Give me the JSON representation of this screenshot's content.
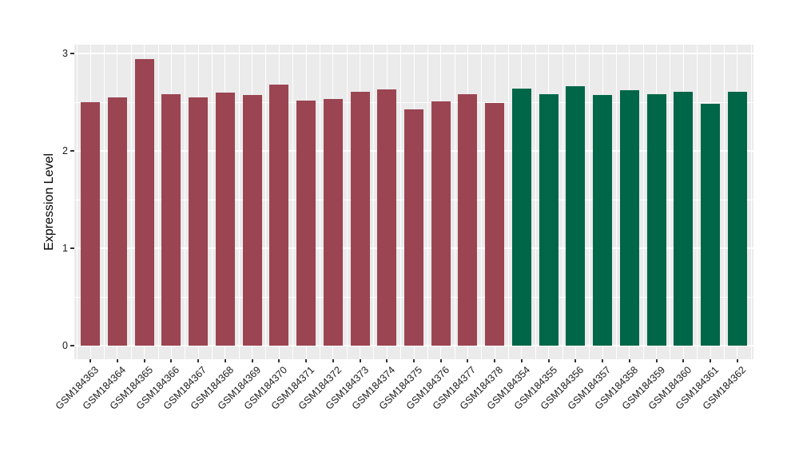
{
  "chart_data": {
    "type": "bar",
    "title": "",
    "xlabel": "",
    "ylabel": "Expression Level",
    "ylim": [
      -0.14,
      3.09
    ],
    "yticks": [
      0,
      1,
      2,
      3
    ],
    "minor_yticks": [
      0.5,
      1.5,
      2.5
    ],
    "grid": "white major+minor gridlines on gray panel, legend none",
    "panel_bg": "#EBEBEB",
    "gridline_color": "#FFFFFF",
    "group_colors": {
      "maroon": "#9B4552",
      "green": "#006648"
    },
    "bars": [
      {
        "label": "GSM184363",
        "value": 2.5,
        "color": "maroon"
      },
      {
        "label": "GSM184364",
        "value": 2.55,
        "color": "maroon"
      },
      {
        "label": "GSM184365",
        "value": 2.94,
        "color": "maroon"
      },
      {
        "label": "GSM184366",
        "value": 2.58,
        "color": "maroon"
      },
      {
        "label": "GSM184367",
        "value": 2.55,
        "color": "maroon"
      },
      {
        "label": "GSM184368",
        "value": 2.6,
        "color": "maroon"
      },
      {
        "label": "GSM184369",
        "value": 2.57,
        "color": "maroon"
      },
      {
        "label": "GSM184370",
        "value": 2.68,
        "color": "maroon"
      },
      {
        "label": "GSM184371",
        "value": 2.52,
        "color": "maroon"
      },
      {
        "label": "GSM184372",
        "value": 2.53,
        "color": "maroon"
      },
      {
        "label": "GSM184373",
        "value": 2.61,
        "color": "maroon"
      },
      {
        "label": "GSM184374",
        "value": 2.63,
        "color": "maroon"
      },
      {
        "label": "GSM184375",
        "value": 2.43,
        "color": "maroon"
      },
      {
        "label": "GSM184376",
        "value": 2.51,
        "color": "maroon"
      },
      {
        "label": "GSM184377",
        "value": 2.58,
        "color": "maroon"
      },
      {
        "label": "GSM184378",
        "value": 2.49,
        "color": "maroon"
      },
      {
        "label": "GSM184354",
        "value": 2.64,
        "color": "green"
      },
      {
        "label": "GSM184355",
        "value": 2.58,
        "color": "green"
      },
      {
        "label": "GSM184356",
        "value": 2.66,
        "color": "green"
      },
      {
        "label": "GSM184357",
        "value": 2.57,
        "color": "green"
      },
      {
        "label": "GSM184358",
        "value": 2.62,
        "color": "green"
      },
      {
        "label": "GSM184359",
        "value": 2.58,
        "color": "green"
      },
      {
        "label": "GSM184360",
        "value": 2.61,
        "color": "green"
      },
      {
        "label": "GSM184361",
        "value": 2.48,
        "color": "green"
      },
      {
        "label": "GSM184362",
        "value": 2.61,
        "color": "green"
      }
    ]
  }
}
